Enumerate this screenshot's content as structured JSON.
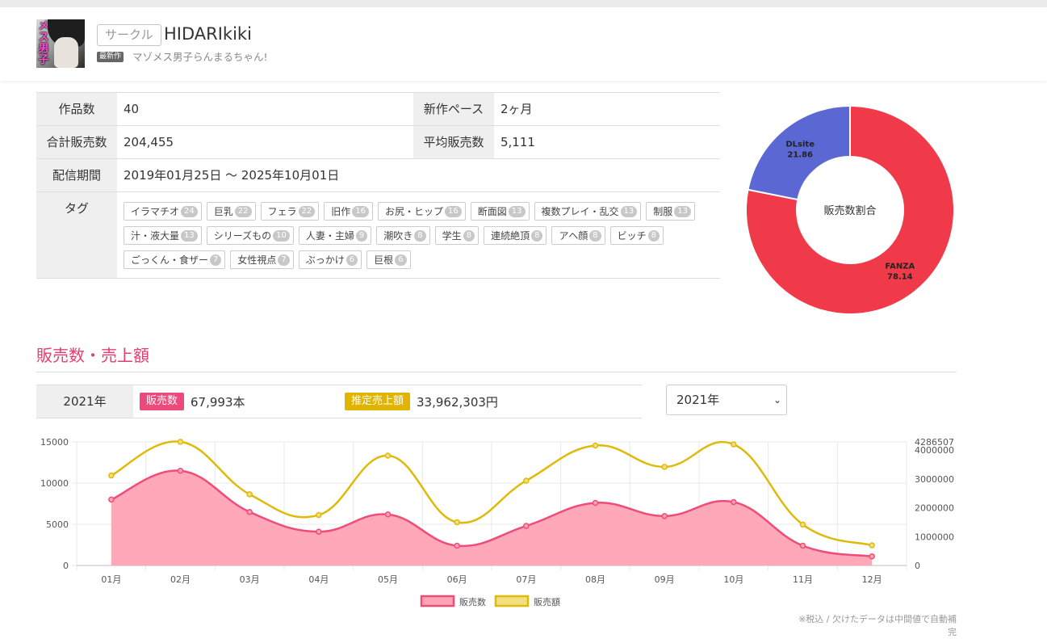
{
  "header": {
    "circle_badge": "サークル",
    "circle_name": "HIDARIkiki",
    "avatar_logo": "メス男子",
    "latest_badge": "最新作",
    "latest_title": "マゾメス男子らんまるちゃん!"
  },
  "info": {
    "works_label": "作品数",
    "works_value": "40",
    "pace_label": "新作ペース",
    "pace_value": "2ヶ月",
    "total_sales_label": "合計販売数",
    "total_sales_value": "204,455",
    "avg_sales_label": "平均販売数",
    "avg_sales_value": "5,111",
    "period_label": "配信期間",
    "period_value": "2019年01月25日 〜 2025年10月01日",
    "tags_label": "タグ",
    "tags": [
      {
        "name": "イラマチオ",
        "count": "24"
      },
      {
        "name": "巨乳",
        "count": "22"
      },
      {
        "name": "フェラ",
        "count": "22"
      },
      {
        "name": "旧作",
        "count": "16"
      },
      {
        "name": "お尻・ヒップ",
        "count": "16"
      },
      {
        "name": "断面図",
        "count": "13"
      },
      {
        "name": "複数プレイ・乱交",
        "count": "13"
      },
      {
        "name": "制服",
        "count": "13"
      },
      {
        "name": "汁・液大量",
        "count": "13"
      },
      {
        "name": "シリーズもの",
        "count": "10"
      },
      {
        "name": "人妻・主婦",
        "count": "9"
      },
      {
        "name": "潮吹き",
        "count": "8"
      },
      {
        "name": "学生",
        "count": "8"
      },
      {
        "name": "連続絶頂",
        "count": "8"
      },
      {
        "name": "アヘ顔",
        "count": "8"
      },
      {
        "name": "ビッチ",
        "count": "8"
      },
      {
        "name": "ごっくん・食ザー",
        "count": "7"
      },
      {
        "name": "女性視点",
        "count": "7"
      },
      {
        "name": "ぶっかけ",
        "count": "6"
      },
      {
        "name": "巨根",
        "count": "6"
      }
    ]
  },
  "chart_data": [
    {
      "type": "pie",
      "title": "販売数割合",
      "categories": [
        "FANZA",
        "DLsite"
      ],
      "values": [
        78.14,
        21.86
      ],
      "colors": [
        "#f03a4a",
        "#5b68d3"
      ],
      "legend": "none"
    },
    {
      "type": "line",
      "categories": [
        "01月",
        "02月",
        "03月",
        "04月",
        "05月",
        "06月",
        "07月",
        "08月",
        "09月",
        "10月",
        "11月",
        "12月"
      ],
      "series": [
        {
          "name": "販売数",
          "axis": "left",
          "color": "#ef4d77",
          "fill": "#ffa3b6",
          "values": [
            8000,
            11500,
            6500,
            4100,
            6200,
            2400,
            4800,
            7600,
            6000,
            7700,
            2400,
            1100
          ]
        },
        {
          "name": "販売額",
          "axis": "right",
          "color": "#dfba0a",
          "fill": "#f3df82",
          "values": [
            3120000,
            4290000,
            2470000,
            1750000,
            3810000,
            1500000,
            2940000,
            4160000,
            3420000,
            4200000,
            1420000,
            700000
          ]
        }
      ],
      "y_left": {
        "ticks": [
          "0",
          "5000",
          "10000",
          "15000"
        ],
        "range": [
          0,
          15000
        ]
      },
      "y_right": {
        "ticks": [
          "0",
          "1000000",
          "2000000",
          "3000000",
          "4000000",
          "4286507"
        ],
        "range": [
          0,
          4286507
        ]
      },
      "grid": true,
      "legend": "bottom"
    }
  ],
  "sales": {
    "title": "販売数・売上額",
    "year_label": "2021年",
    "count_badge": "販売数",
    "count_value": "67,993本",
    "revenue_badge": "推定売上額",
    "revenue_value": "33,962,303円",
    "year_select": "2021年",
    "note": "※税込 / 欠けたデータは中間値で自動補完"
  },
  "colors": {
    "accent": "#e23f70",
    "fanza": "#f03a4a",
    "dlsite": "#5b68d3",
    "sales_count": "#ef4d77",
    "sales_amount": "#dfba0a"
  }
}
